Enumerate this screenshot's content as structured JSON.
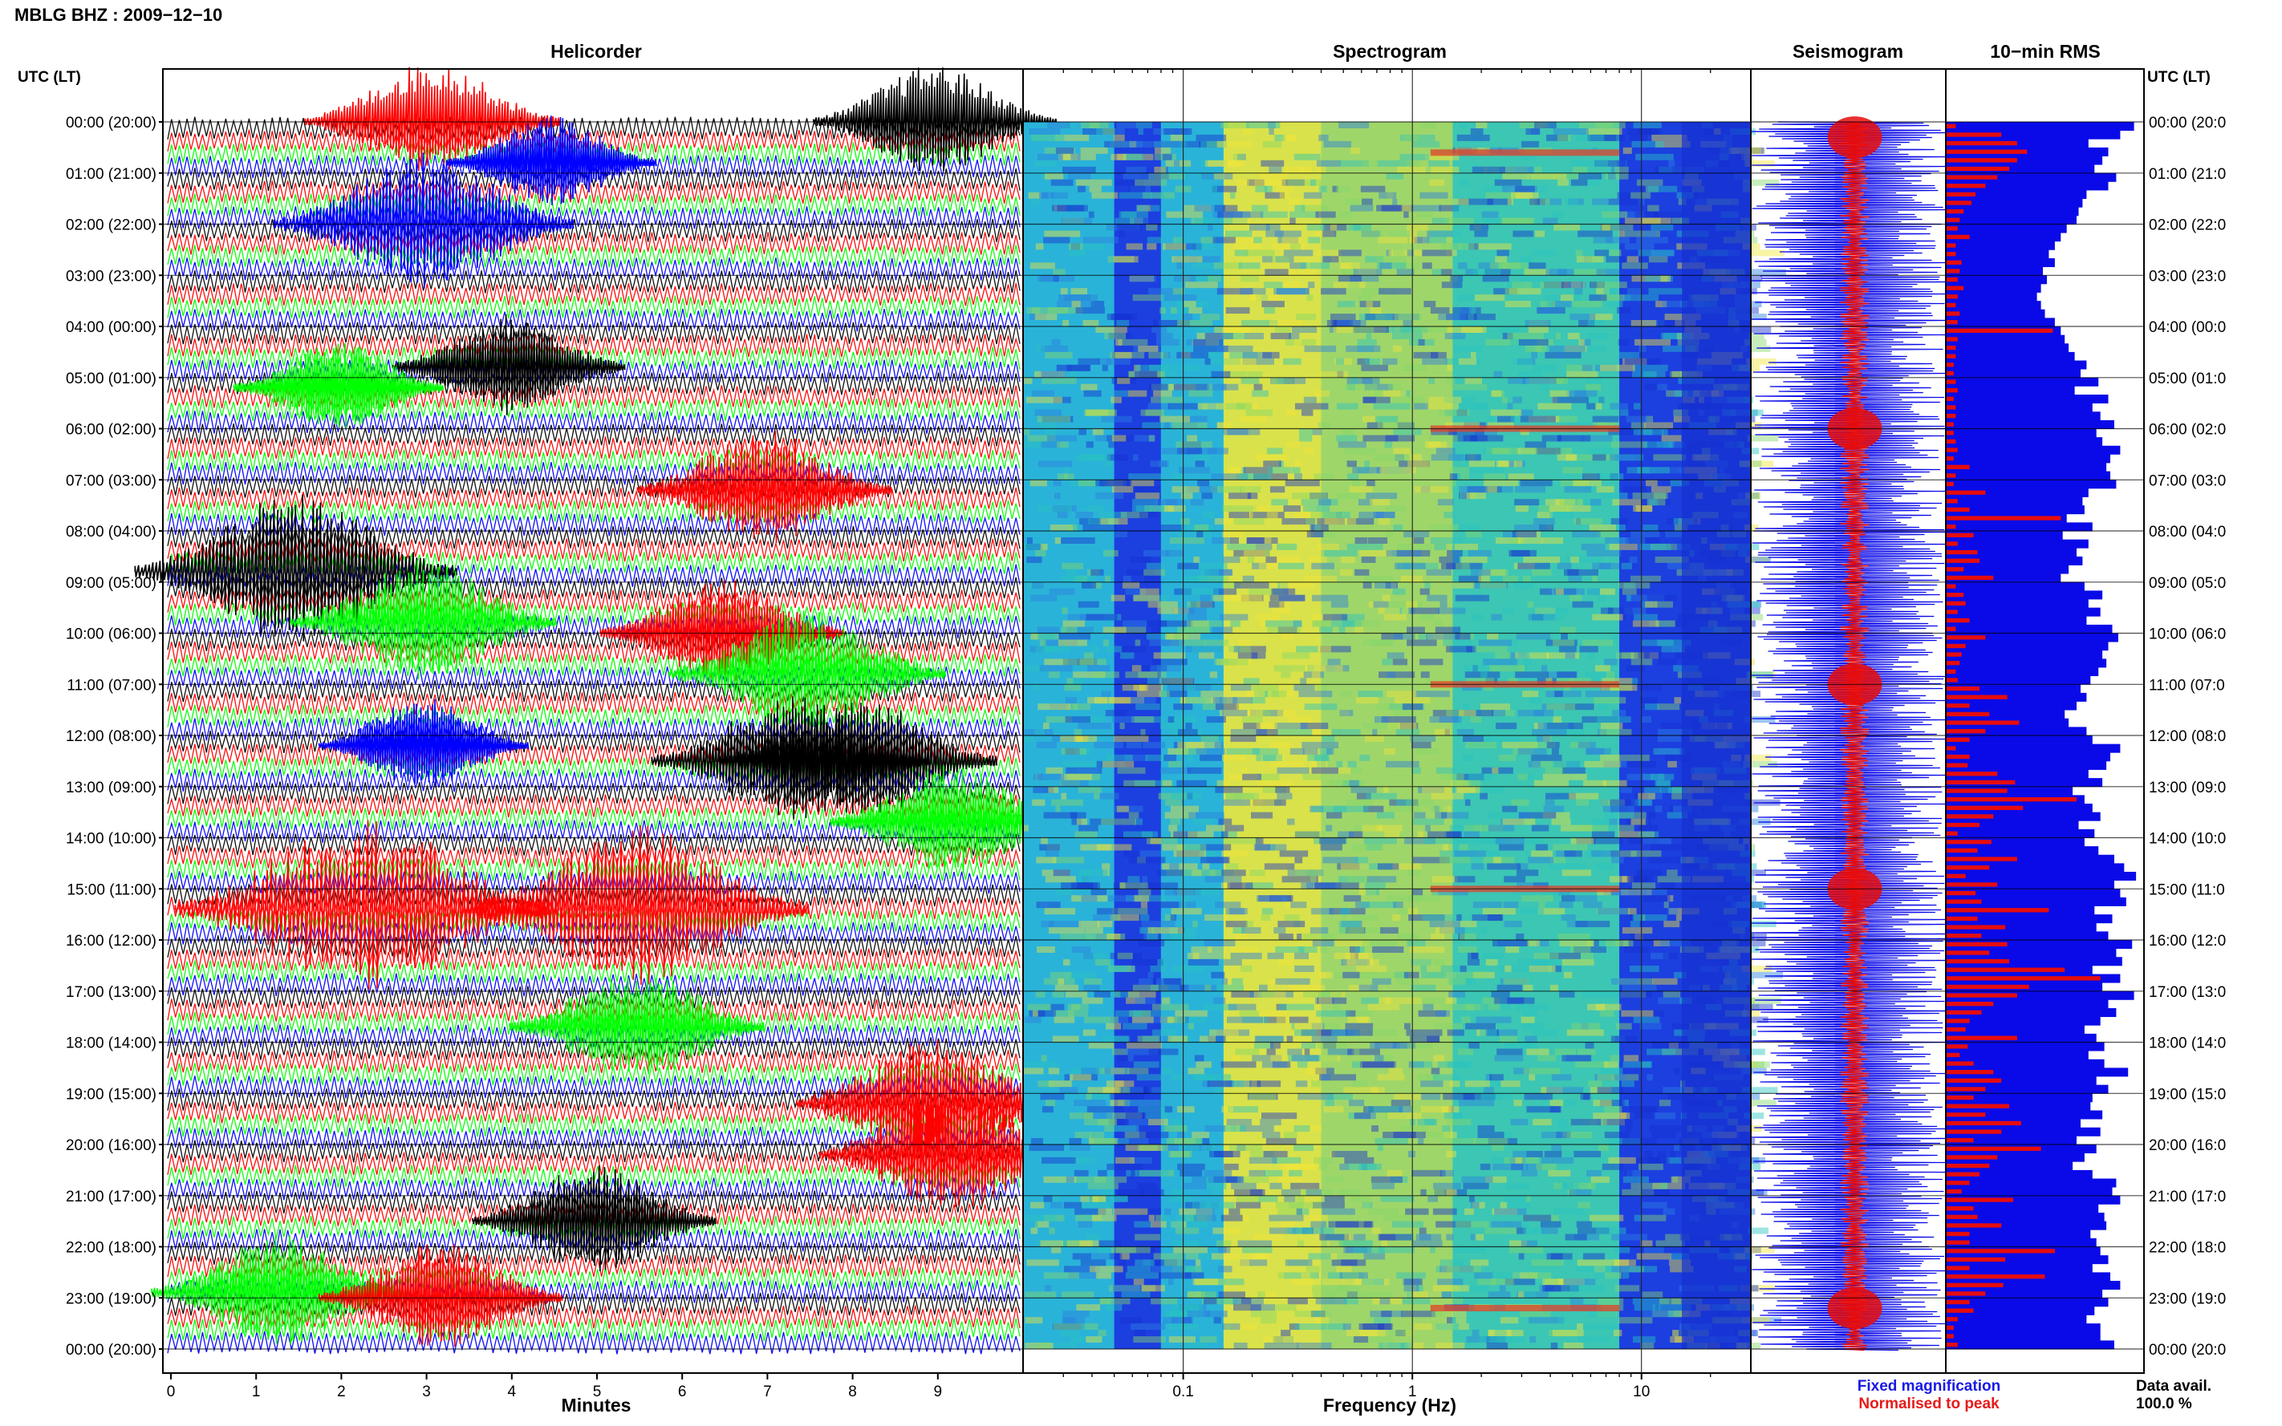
{
  "header": {
    "station": "MBLG BHZ : 2009−12−10"
  },
  "panels": {
    "helicorder": "Helicorder",
    "spectrogram": "Spectrogram",
    "seismogram": "Seismogram",
    "rms": "10−min RMS"
  },
  "axis_labels": {
    "time_left": "UTC (LT)",
    "time_right": "UTC (LT)",
    "helicorder_x": "Minutes",
    "spectrogram_x": "Frequency (Hz)"
  },
  "legend": {
    "fixed": "Fixed magnification",
    "normalised": "Normalised to peak",
    "fixed_color": "#1a1ae6",
    "normalised_color": "#e61a1a"
  },
  "data_availability": {
    "label": "Data avail.",
    "value": "100.0 %"
  },
  "colors": {
    "trace_cycle": [
      "#000000",
      "#ff0000",
      "#00ff00",
      "#0000ff"
    ],
    "spectro_low": "#1530d0",
    "spectro_mid": "#27c4c0",
    "spectro_high": "#f2e53a",
    "spectro_peak": "#e0402a",
    "rms_fixed": "#0a0ae8",
    "rms_norm": "#e60c0c"
  },
  "chart_data": {
    "type": "heatmap",
    "time_labels_left": [
      "00:00 (20:00)",
      "01:00 (21:00)",
      "02:00 (22:00)",
      "03:00 (23:00)",
      "04:00 (00:00)",
      "05:00 (01:00)",
      "06:00 (02:00)",
      "07:00 (03:00)",
      "08:00 (04:00)",
      "09:00 (05:00)",
      "10:00 (06:00)",
      "11:00 (07:00)",
      "12:00 (08:00)",
      "13:00 (09:00)",
      "14:00 (10:00)",
      "15:00 (11:00)",
      "16:00 (12:00)",
      "17:00 (13:00)",
      "18:00 (14:00)",
      "19:00 (15:00)",
      "20:00 (16:00)",
      "21:00 (17:00)",
      "22:00 (18:00)",
      "23:00 (19:00)",
      "00:00 (20:00)"
    ],
    "time_labels_right": [
      "00:00 (20:0",
      "01:00 (21:0",
      "02:00 (22:0",
      "03:00 (23:0",
      "04:00 (00:0",
      "05:00 (01:0",
      "06:00 (02:0",
      "07:00 (03:0",
      "08:00 (04:0",
      "09:00 (05:0",
      "10:00 (06:0",
      "11:00 (07:0",
      "12:00 (08:0",
      "13:00 (09:0",
      "14:00 (10:0",
      "15:00 (11:0",
      "16:00 (12:0",
      "17:00 (13:0",
      "18:00 (14:0",
      "19:00 (15:0",
      "20:00 (16:0",
      "21:00 (17:0",
      "22:00 (18:0",
      "23:00 (19:0",
      "00:00 (20:0"
    ],
    "helicorder_minutes": [
      "0",
      "1",
      "2",
      "3",
      "4",
      "5",
      "6",
      "7",
      "8",
      "9"
    ],
    "helicorder_xlim": [
      0,
      10
    ],
    "spectrogram_freq_ticks": [
      "0.1",
      "1",
      "10"
    ],
    "spectrogram_xlim": [
      0.02,
      30
    ],
    "spectrogram_xscale": "log",
    "spectrogram_bands": [
      {
        "f_low": 0.02,
        "f_high": 0.05,
        "level": "cyan"
      },
      {
        "f_low": 0.05,
        "f_high": 0.08,
        "level": "blue"
      },
      {
        "f_low": 0.08,
        "f_high": 0.15,
        "level": "cyan"
      },
      {
        "f_low": 0.15,
        "f_high": 0.4,
        "level": "yellow"
      },
      {
        "f_low": 0.4,
        "f_high": 1.5,
        "level": "green-yellow"
      },
      {
        "f_low": 1.5,
        "f_high": 8,
        "level": "cyan-green"
      },
      {
        "f_low": 8,
        "f_high": 30,
        "level": "blue"
      }
    ],
    "spectrogram_red_streak_hours": [
      0.6,
      6.0,
      11.0,
      15.0,
      23.2
    ],
    "hours": 24,
    "helicorder_bursts": [
      {
        "hour": 0.0,
        "minute": 3.1,
        "color": "red",
        "amp": 1.4
      },
      {
        "hour": 0.0,
        "minute": 9.0,
        "color": "black",
        "amp": 1.3
      },
      {
        "hour": 0.8,
        "minute": 4.5,
        "color": "blue",
        "amp": 1.0
      },
      {
        "hour": 2.0,
        "minute": 3.0,
        "color": "blue",
        "amp": 1.8
      },
      {
        "hour": 4.8,
        "minute": 4.0,
        "color": "black",
        "amp": 1.2
      },
      {
        "hour": 5.2,
        "minute": 2.0,
        "color": "green",
        "amp": 1.0
      },
      {
        "hour": 7.2,
        "minute": 7.0,
        "color": "red",
        "amp": 1.4
      },
      {
        "hour": 8.8,
        "minute": 1.5,
        "color": "black",
        "amp": 2.0
      },
      {
        "hour": 9.8,
        "minute": 3.0,
        "color": "green",
        "amp": 1.5
      },
      {
        "hour": 10.0,
        "minute": 6.5,
        "color": "red",
        "amp": 1.3
      },
      {
        "hour": 10.8,
        "minute": 7.5,
        "color": "green",
        "amp": 1.6
      },
      {
        "hour": 12.2,
        "minute": 3.0,
        "color": "blue",
        "amp": 1.0
      },
      {
        "hour": 12.5,
        "minute": 7.3,
        "color": "black",
        "amp": 1.6
      },
      {
        "hour": 12.5,
        "minute": 8.1,
        "color": "black",
        "amp": 1.6
      },
      {
        "hour": 13.7,
        "minute": 9.2,
        "color": "green",
        "amp": 1.3
      },
      {
        "hour": 15.4,
        "minute": 2.3,
        "color": "red",
        "amp": 2.5
      },
      {
        "hour": 15.4,
        "minute": 5.5,
        "color": "red",
        "amp": 2.2
      },
      {
        "hour": 17.7,
        "minute": 5.5,
        "color": "green",
        "amp": 1.4
      },
      {
        "hour": 19.2,
        "minute": 9.0,
        "color": "red",
        "amp": 1.6
      },
      {
        "hour": 20.2,
        "minute": 9.2,
        "color": "red",
        "amp": 1.5
      },
      {
        "hour": 21.5,
        "minute": 5.0,
        "color": "black",
        "amp": 1.3
      },
      {
        "hour": 22.9,
        "minute": 1.3,
        "color": "green",
        "amp": 1.4
      },
      {
        "hour": 23.0,
        "minute": 3.2,
        "color": "red",
        "amp": 1.3
      }
    ],
    "seismogram_events_hours": [
      0.3,
      6.0,
      11.0,
      15.0,
      23.2
    ],
    "rms_series": [
      {
        "name": "Fixed magnification",
        "values": [
          0.95,
          0.88,
          0.72,
          0.82,
          0.79,
          0.75,
          0.86,
          0.82,
          0.71,
          0.69,
          0.67,
          0.66,
          0.61,
          0.58,
          0.55,
          0.52,
          0.55,
          0.49,
          0.51,
          0.48,
          0.46,
          0.48,
          0.5,
          0.55,
          0.58,
          0.6,
          0.62,
          0.65,
          0.71,
          0.68,
          0.77,
          0.65,
          0.82,
          0.74,
          0.78,
          0.85,
          0.76,
          0.79,
          0.88,
          0.83,
          0.81,
          0.83,
          0.86,
          0.72,
          0.69,
          0.7,
          0.61,
          0.74,
          0.59,
          0.72,
          0.66,
          0.69,
          0.62,
          0.58,
          0.7,
          0.79,
          0.72,
          0.78,
          0.71,
          0.84,
          0.87,
          0.82,
          0.79,
          0.81,
          0.77,
          0.73,
          0.68,
          0.71,
          0.66,
          0.6,
          0.62,
          0.71,
          0.74,
          0.88,
          0.83,
          0.81,
          0.72,
          0.79,
          0.64,
          0.7,
          0.74,
          0.78,
          0.67,
          0.75,
          0.7,
          0.77,
          0.85,
          0.9,
          0.96,
          0.85,
          0.88,
          0.91,
          0.75,
          0.84,
          0.76,
          0.82,
          0.94,
          0.86,
          0.89,
          0.74,
          0.88,
          0.79,
          0.95,
          0.82,
          0.86,
          0.78,
          0.7,
          0.76,
          0.8,
          0.72,
          0.8,
          0.92,
          0.76,
          0.82,
          0.74,
          0.73,
          0.79,
          0.68,
          0.78,
          0.66,
          0.76,
          0.7,
          0.64,
          0.74,
          0.86,
          0.84,
          0.88,
          0.77,
          0.8,
          0.81,
          0.73,
          0.76,
          0.78,
          0.82,
          0.74,
          0.83,
          0.88,
          0.79,
          0.82,
          0.75,
          0.71,
          0.78,
          0.78,
          0.85
        ]
      },
      {
        "name": "Normalised to peak",
        "values": [
          0.05,
          0.28,
          0.36,
          0.41,
          0.36,
          0.32,
          0.26,
          0.2,
          0.15,
          0.13,
          0.09,
          0.07,
          0.06,
          0.12,
          0.05,
          0.05,
          0.08,
          0.07,
          0.06,
          0.09,
          0.06,
          0.05,
          0.07,
          0.06,
          0.54,
          0.06,
          0.05,
          0.05,
          0.04,
          0.04,
          0.05,
          0.06,
          0.04,
          0.05,
          0.05,
          0.04,
          0.04,
          0.05,
          0.06,
          0.04,
          0.12,
          0.05,
          0.04,
          0.2,
          0.06,
          0.12,
          0.58,
          0.05,
          0.14,
          0.06,
          0.16,
          0.17,
          0.09,
          0.24,
          0.05,
          0.09,
          0.1,
          0.06,
          0.12,
          0.05,
          0.2,
          0.1,
          0.08,
          0.07,
          0.05,
          0.06,
          0.17,
          0.31,
          0.12,
          0.22,
          0.37,
          0.2,
          0.12,
          0.05,
          0.12,
          0.11,
          0.26,
          0.35,
          0.31,
          0.66,
          0.39,
          0.24,
          0.17,
          0.06,
          0.23,
          0.16,
          0.36,
          0.22,
          0.1,
          0.26,
          0.15,
          0.18,
          0.52,
          0.16,
          0.3,
          0.18,
          0.31,
          0.22,
          0.32,
          0.6,
          0.78,
          0.42,
          0.36,
          0.24,
          0.18,
          0.12,
          0.1,
          0.36,
          0.11,
          0.07,
          0.14,
          0.24,
          0.28,
          0.2,
          0.14,
          0.32,
          0.2,
          0.38,
          0.28,
          0.14,
          0.48,
          0.26,
          0.22,
          0.17,
          0.12,
          0.08,
          0.34,
          0.14,
          0.16,
          0.28,
          0.12,
          0.12,
          0.55,
          0.3,
          0.12,
          0.5,
          0.29,
          0.2,
          0.12,
          0.14,
          0.06,
          0.04,
          0.04,
          0.06
        ]
      }
    ]
  }
}
